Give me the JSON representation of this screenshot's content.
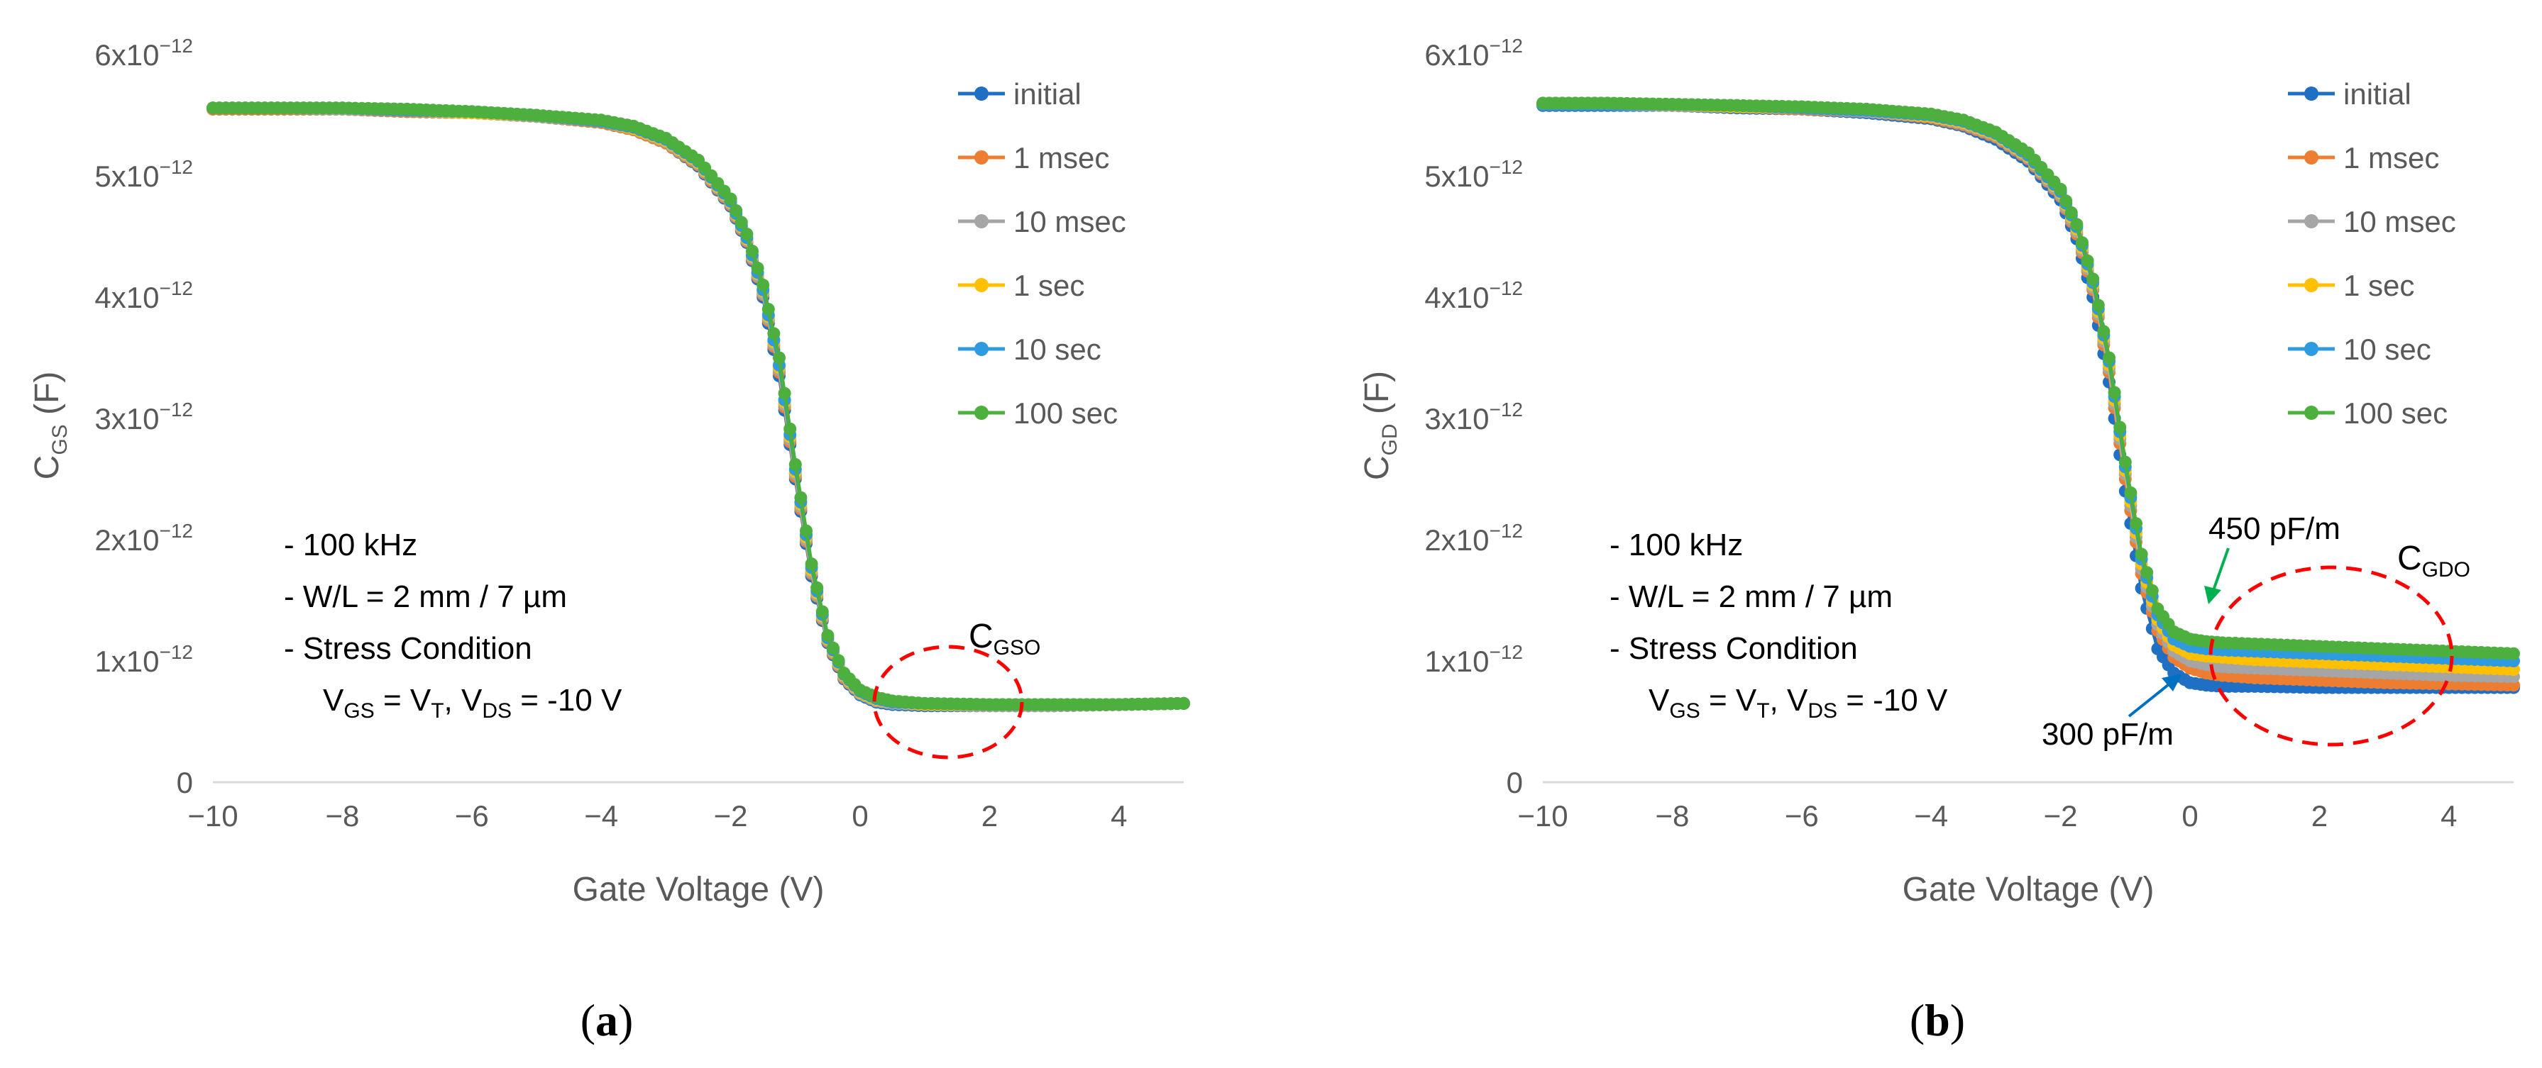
{
  "chart_data": [
    {
      "panel": "(a)",
      "type": "line",
      "xlabel": "Gate Voltage (V)",
      "ylabel": {
        "main": "C",
        "sub": "GS",
        "unit": " (F)"
      },
      "xlim": [
        -10,
        5
      ],
      "ylim": [
        0,
        6e-12
      ],
      "xticks": [
        "−10",
        "−8",
        "−6",
        "−4",
        "−2",
        "0",
        "2",
        "4"
      ],
      "yticks": [
        {
          "zero": "0"
        },
        {
          "mant": "1",
          "exp": "−12"
        },
        {
          "mant": "2",
          "exp": "−12"
        },
        {
          "mant": "3",
          "exp": "−12"
        },
        {
          "mant": "4",
          "exp": "−12"
        },
        {
          "mant": "5",
          "exp": "−12"
        },
        {
          "mant": "6",
          "exp": "−12"
        }
      ],
      "tick_base": "x10",
      "x": [
        -10,
        -9,
        -8,
        -7,
        -6,
        -5,
        -4,
        -3.5,
        -3,
        -2.5,
        -2,
        -1.75,
        -1.5,
        -1.25,
        -1,
        -0.75,
        -0.5,
        -0.25,
        0,
        0.25,
        0.5,
        1,
        2,
        3,
        4,
        5
      ],
      "series": [
        {
          "name": "initial",
          "color": "#1f6fc5",
          "values": [
            5.55e-12,
            5.55e-12,
            5.55e-12,
            5.53e-12,
            5.52e-12,
            5.49e-12,
            5.44e-12,
            5.38e-12,
            5.27e-12,
            5.08e-12,
            4.75e-12,
            4.45e-12,
            4e-12,
            3.35e-12,
            2.5e-12,
            1.7e-12,
            1.15e-12,
            8.5e-13,
            7.2e-13,
            6.6e-13,
            6.4e-13,
            6.3e-13,
            6.3e-13,
            6.3e-13,
            6.4e-13,
            6.5e-13
          ]
        },
        {
          "name": "1 msec",
          "color": "#ed7d31",
          "values": [
            5.55e-12,
            5.55e-12,
            5.55e-12,
            5.53e-12,
            5.52e-12,
            5.49e-12,
            5.44e-12,
            5.38e-12,
            5.27e-12,
            5.09e-12,
            4.76e-12,
            4.46e-12,
            4.02e-12,
            3.38e-12,
            2.52e-12,
            1.72e-12,
            1.16e-12,
            8.6e-13,
            7.3e-13,
            6.7e-13,
            6.5e-13,
            6.4e-13,
            6.3e-13,
            6.3e-13,
            6.4e-13,
            6.5e-13
          ]
        },
        {
          "name": "10 msec",
          "color": "#a5a5a5",
          "values": [
            5.56e-12,
            5.56e-12,
            5.55e-12,
            5.54e-12,
            5.52e-12,
            5.49e-12,
            5.45e-12,
            5.39e-12,
            5.28e-12,
            5.1e-12,
            4.77e-12,
            4.47e-12,
            4.03e-12,
            3.4e-12,
            2.54e-12,
            1.73e-12,
            1.17e-12,
            8.7e-13,
            7.3e-13,
            6.7e-13,
            6.5e-13,
            6.4e-13,
            6.3e-13,
            6.3e-13,
            6.4e-13,
            6.5e-13
          ]
        },
        {
          "name": "1 sec",
          "color": "#ffc000",
          "values": [
            5.56e-12,
            5.56e-12,
            5.56e-12,
            5.54e-12,
            5.52e-12,
            5.5e-12,
            5.45e-12,
            5.39e-12,
            5.29e-12,
            5.11e-12,
            4.78e-12,
            4.48e-12,
            4.05e-12,
            3.42e-12,
            2.56e-12,
            1.75e-12,
            1.18e-12,
            8.8e-13,
            7.4e-13,
            6.8e-13,
            6.6e-13,
            6.4e-13,
            6.4e-13,
            6.4e-13,
            6.4e-13,
            6.5e-13
          ]
        },
        {
          "name": "10 sec",
          "color": "#2e9be0",
          "values": [
            5.56e-12,
            5.56e-12,
            5.56e-12,
            5.54e-12,
            5.53e-12,
            5.5e-12,
            5.45e-12,
            5.4e-12,
            5.3e-12,
            5.12e-12,
            4.79e-12,
            4.49e-12,
            4.06e-12,
            3.44e-12,
            2.58e-12,
            1.77e-12,
            1.19e-12,
            8.9e-13,
            7.5e-13,
            6.9e-13,
            6.6e-13,
            6.5e-13,
            6.4e-13,
            6.4e-13,
            6.4e-13,
            6.5e-13
          ]
        },
        {
          "name": "100 sec",
          "color": "#4caf3e",
          "values": [
            5.56e-12,
            5.56e-12,
            5.56e-12,
            5.55e-12,
            5.53e-12,
            5.5e-12,
            5.46e-12,
            5.41e-12,
            5.31e-12,
            5.13e-12,
            4.81e-12,
            4.52e-12,
            4.1e-12,
            3.5e-12,
            2.62e-12,
            1.8e-12,
            1.21e-12,
            9e-13,
            7.6e-13,
            7e-13,
            6.7e-13,
            6.5e-13,
            6.4e-13,
            6.4e-13,
            6.4e-13,
            6.5e-13
          ]
        }
      ],
      "notes": [
        "- 100 kHz",
        "- W/L = 2 mm / 7 µm",
        "- Stress Condition"
      ],
      "condition": {
        "v1": "V",
        "s1": "GS",
        "eq1": " = V",
        "s2": "T",
        "sep": ", V",
        "s3": "DS",
        "eq2": " = -10 V"
      },
      "circle_label": {
        "main": "C",
        "sub": "GSO"
      }
    },
    {
      "panel": "(b)",
      "type": "line",
      "xlabel": "Gate Voltage (V)",
      "ylabel": {
        "main": "C",
        "sub": "GD",
        "unit": " (F)"
      },
      "xlim": [
        -10,
        5
      ],
      "ylim": [
        0,
        6e-12
      ],
      "xticks": [
        "−10",
        "−8",
        "−6",
        "−4",
        "−2",
        "0",
        "2",
        "4"
      ],
      "yticks": [
        {
          "zero": "0"
        },
        {
          "mant": "1",
          "exp": "−12"
        },
        {
          "mant": "2",
          "exp": "−12"
        },
        {
          "mant": "3",
          "exp": "−12"
        },
        {
          "mant": "4",
          "exp": "−12"
        },
        {
          "mant": "5",
          "exp": "−12"
        },
        {
          "mant": "6",
          "exp": "−12"
        }
      ],
      "tick_base": "x10",
      "x": [
        -10,
        -9,
        -8,
        -7,
        -6,
        -5,
        -4,
        -3.5,
        -3,
        -2.5,
        -2,
        -1.75,
        -1.5,
        -1.25,
        -1,
        -0.75,
        -0.5,
        -0.25,
        0,
        0.25,
        0.5,
        1,
        2,
        3,
        4,
        5
      ],
      "series": [
        {
          "name": "initial",
          "color": "#1f6fc5",
          "values": [
            5.58e-12,
            5.58e-12,
            5.58e-12,
            5.56e-12,
            5.55e-12,
            5.52e-12,
            5.47e-12,
            5.41e-12,
            5.3e-12,
            5.12e-12,
            4.8e-12,
            4.48e-12,
            4e-12,
            3.3e-12,
            2.4e-12,
            1.6e-12,
            1.1e-12,
            9e-13,
            8.2e-13,
            8e-13,
            7.9e-13,
            7.9e-13,
            7.8e-13,
            7.8e-13,
            7.8e-13,
            7.8e-13
          ]
        },
        {
          "name": "1 msec",
          "color": "#ed7d31",
          "values": [
            5.59e-12,
            5.59e-12,
            5.58e-12,
            5.57e-12,
            5.55e-12,
            5.53e-12,
            5.48e-12,
            5.42e-12,
            5.32e-12,
            5.14e-12,
            4.83e-12,
            4.52e-12,
            4.06e-12,
            3.38e-12,
            2.5e-12,
            1.72e-12,
            1.25e-12,
            1.03e-12,
            9.4e-13,
            9e-13,
            8.8e-13,
            8.6e-13,
            8.4e-13,
            8.2e-13,
            8.1e-13,
            8e-13
          ]
        },
        {
          "name": "10 msec",
          "color": "#a5a5a5",
          "values": [
            5.59e-12,
            5.59e-12,
            5.58e-12,
            5.57e-12,
            5.56e-12,
            5.53e-12,
            5.49e-12,
            5.43e-12,
            5.33e-12,
            5.15e-12,
            4.84e-12,
            4.54e-12,
            4.08e-12,
            3.41e-12,
            2.54e-12,
            1.76e-12,
            1.3e-12,
            1.08e-12,
            1e-12,
            9.7e-13,
            9.5e-13,
            9.4e-13,
            9.2e-13,
            9e-13,
            8.8e-13,
            8.7e-13
          ]
        },
        {
          "name": "1 sec",
          "color": "#ffc000",
          "values": [
            5.59e-12,
            5.59e-12,
            5.59e-12,
            5.57e-12,
            5.56e-12,
            5.54e-12,
            5.49e-12,
            5.44e-12,
            5.34e-12,
            5.16e-12,
            4.86e-12,
            4.56e-12,
            4.1e-12,
            3.44e-12,
            2.57e-12,
            1.8e-12,
            1.34e-12,
            1.13e-12,
            1.06e-12,
            1.04e-12,
            1.03e-12,
            1.01e-12,
            9.9e-13,
            9.7e-13,
            9.5e-13,
            9.3e-13
          ]
        },
        {
          "name": "10 sec",
          "color": "#2e9be0",
          "values": [
            5.59e-12,
            5.59e-12,
            5.59e-12,
            5.58e-12,
            5.56e-12,
            5.54e-12,
            5.5e-12,
            5.45e-12,
            5.35e-12,
            5.17e-12,
            4.87e-12,
            4.58e-12,
            4.12e-12,
            3.47e-12,
            2.6e-12,
            1.84e-12,
            1.38e-12,
            1.18e-12,
            1.12e-12,
            1.1e-12,
            1.09e-12,
            1.08e-12,
            1.06e-12,
            1.04e-12,
            1.02e-12,
            1e-12
          ]
        },
        {
          "name": "100 sec",
          "color": "#4caf3e",
          "values": [
            5.6e-12,
            5.6e-12,
            5.59e-12,
            5.58e-12,
            5.57e-12,
            5.55e-12,
            5.51e-12,
            5.46e-12,
            5.36e-12,
            5.19e-12,
            4.89e-12,
            4.6e-12,
            4.15e-12,
            3.5e-12,
            2.64e-12,
            1.88e-12,
            1.43e-12,
            1.24e-12,
            1.18e-12,
            1.16e-12,
            1.15e-12,
            1.14e-12,
            1.12e-12,
            1.1e-12,
            1.08e-12,
            1.06e-12
          ]
        }
      ],
      "notes": [
        "- 100 kHz",
        "- W/L = 2 mm / 7 µm",
        "- Stress Condition"
      ],
      "condition": {
        "v1": "V",
        "s1": "GS",
        "eq1": " = V",
        "s2": "T",
        "sep": ", V",
        "s3": "DS",
        "eq2": " = -10 V"
      },
      "circle_label": {
        "main": "C",
        "sub": "GDO"
      },
      "annotation_450": "450 pF/m",
      "annotation_300": "300 pF/m",
      "annotation_450_color": "#00b050",
      "annotation_300_color": "#0070c0"
    }
  ],
  "panel_labels": {
    "a": "a",
    "b": "b"
  },
  "circle_color": "#ff0000"
}
